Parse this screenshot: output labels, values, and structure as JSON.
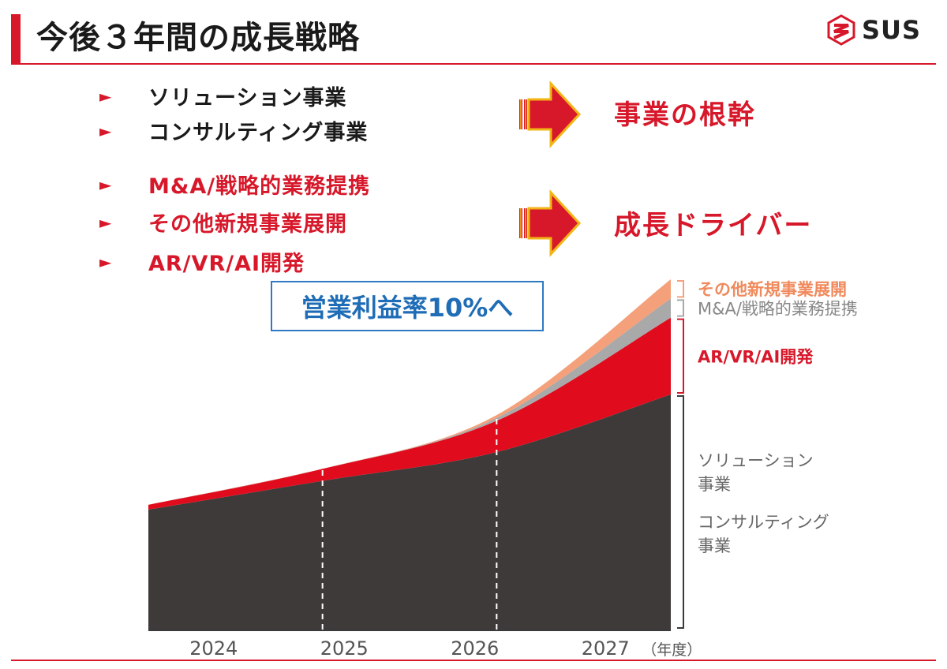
{
  "colors": {
    "accent_red": "#d7182a",
    "dark_gray": "#3f3a3a",
    "silver": "#a9a9a9",
    "salmon": "#f4a07a",
    "blue": "#2f79c2",
    "arrow_gold": "#f2b516"
  },
  "header": {
    "title": "今後３年間の成長戦略",
    "logo_text": "SUS",
    "logo_icon": "sus-logo-icon"
  },
  "bullets": [
    {
      "text": "ソリューション事業",
      "color": "#1a1a1a"
    },
    {
      "text": "コンサルティング事業",
      "color": "#1a1a1a"
    },
    {
      "text": "M&A/戦略的業務提携",
      "color": "#d7182a"
    },
    {
      "text": "その他新規事業展開",
      "color": "#d7182a"
    },
    {
      "text": "AR/VR/AI開発",
      "color": "#d7182a"
    }
  ],
  "bullet_marker": "►",
  "results": {
    "core": "事業の根幹",
    "growth": "成長ドライバー"
  },
  "badge": "営業利益率10%へ",
  "chart_data": {
    "type": "area",
    "stacked": true,
    "x": [
      "2024",
      "2025",
      "2026",
      "2027"
    ],
    "x_unit": "（年度）",
    "y_axis_visible": false,
    "gridlines": "dashed vertical at 2025, 2026, 2027",
    "series": [
      {
        "name": "ソリューション事業 コンサルティング事業",
        "label_lines": [
          "ソリューション",
          "事業",
          "コンサルティング",
          "事業"
        ],
        "color": "#3f3a3a",
        "values": [
          25,
          31,
          37,
          49
        ]
      },
      {
        "name": "AR/VR/AI開発",
        "label_lines": [
          "AR/VR/AI開発"
        ],
        "color": "#e00b1c",
        "values": [
          1,
          2.5,
          6.5,
          16
        ]
      },
      {
        "name": "M&A/戦略的業務提携",
        "label_lines": [
          "M&A/戦略的業務提携"
        ],
        "color": "#a9a9a9",
        "values": [
          0,
          0,
          0.6,
          4
        ]
      },
      {
        "name": "その他新規事業展開",
        "label_lines": [
          "その他新規事業展開"
        ],
        "color": "#f4a07a",
        "values": [
          0,
          0,
          0.6,
          4
        ]
      }
    ]
  }
}
